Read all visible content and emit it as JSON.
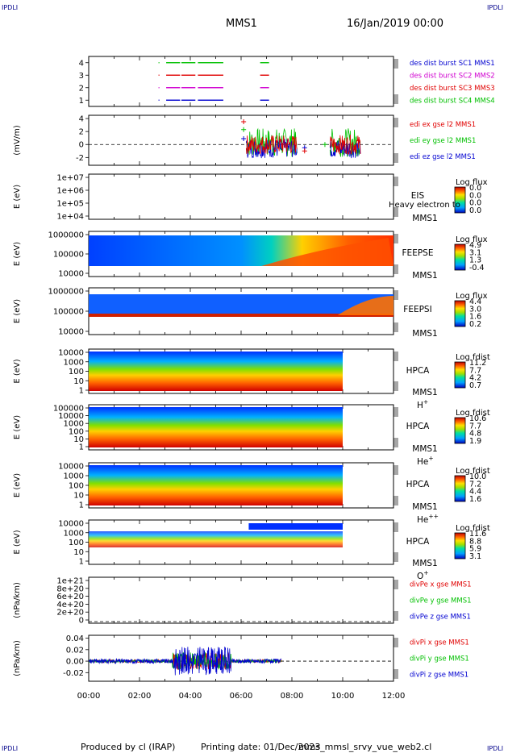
{
  "header": {
    "mission": "MMS1",
    "datetime": "16/Jan/2019 00:00",
    "corner_labels": [
      "IPDLI",
      "IPDLI",
      "IPDLI",
      "IPDLI"
    ]
  },
  "footer": {
    "produced_by": "Produced by cl (IRAP)",
    "printing_date": "Printing date: 01/Dec/2023",
    "filename": "mms_mmsl_srvy_vue_web2.cl"
  },
  "colors": {
    "red": "#e00000",
    "green": "#00c000",
    "blue": "#0000d0",
    "magenta": "#d000d0"
  },
  "chart_data": [
    {
      "id": "burst",
      "type": "scatter",
      "title": "",
      "ylabel": "",
      "yticks": [
        "4",
        "3",
        "2",
        "1"
      ],
      "ylim": [
        0.5,
        4.5
      ],
      "legend": [
        {
          "text": "des dist burst SC1 MMS1",
          "color": "#0000d0"
        },
        {
          "text": "des dist burst SC2 MMS2",
          "color": "#d000d0"
        },
        {
          "text": "des dist burst SC3 MMS3",
          "color": "#e00000"
        },
        {
          "text": "des dist burst SC4 MMS4",
          "color": "#00c000"
        }
      ],
      "series": [
        {
          "name": "des dist burst SC4 MMS4",
          "y": 4,
          "color": "#00c000",
          "intervals": [
            [
              2.75,
              2.76
            ],
            [
              3.05,
              3.6
            ],
            [
              3.65,
              4.2
            ],
            [
              4.3,
              5.3
            ],
            [
              6.75,
              7.1
            ]
          ]
        },
        {
          "name": "des dist burst SC3 MMS3",
          "y": 3,
          "color": "#e00000",
          "intervals": [
            [
              2.75,
              2.76
            ],
            [
              3.05,
              3.6
            ],
            [
              3.65,
              4.2
            ],
            [
              4.3,
              5.3
            ],
            [
              6.75,
              7.1
            ]
          ]
        },
        {
          "name": "des dist burst SC2 MMS2",
          "y": 2,
          "color": "#d000d0",
          "intervals": [
            [
              2.75,
              2.76
            ],
            [
              3.05,
              3.6
            ],
            [
              3.65,
              4.2
            ],
            [
              4.3,
              5.3
            ],
            [
              6.75,
              7.1
            ]
          ]
        },
        {
          "name": "des dist burst SC1 MMS1",
          "y": 1,
          "color": "#0000d0",
          "intervals": [
            [
              2.75,
              2.76
            ],
            [
              3.05,
              3.6
            ],
            [
              3.65,
              4.2
            ],
            [
              4.3,
              5.3
            ],
            [
              6.75,
              7.1
            ]
          ]
        }
      ]
    },
    {
      "id": "edi",
      "type": "line",
      "title": "",
      "ylabel": "(mV/m)",
      "yticks": [
        "4",
        "2",
        "0",
        "-2"
      ],
      "ylim": [
        -3.2,
        4.5
      ],
      "legend": [
        {
          "text": "edi ex gse l2 MMS1",
          "color": "#e00000"
        },
        {
          "text": "edi ey gse l2 MMS1",
          "color": "#00c000"
        },
        {
          "text": "edi ez gse l2 MMS1",
          "color": "#0000d0"
        }
      ],
      "segments": [
        [
          6.2,
          8.2
        ],
        [
          9.5,
          10.7
        ]
      ],
      "markers": [
        {
          "t": 6.1,
          "v": 3.5,
          "color": "#e00000"
        },
        {
          "t": 6.1,
          "v": 2.3,
          "color": "#00c000"
        },
        {
          "t": 6.1,
          "v": 0.9,
          "color": "#0000d0"
        },
        {
          "t": 8.5,
          "v": -0.5,
          "color": "#0000d0"
        },
        {
          "t": 8.5,
          "v": -1.0,
          "color": "#e00000"
        },
        {
          "t": 9.3,
          "v": 0.0,
          "color": "#00c000"
        }
      ]
    },
    {
      "id": "eis",
      "type": "heatmap",
      "title": "",
      "ylabel": "E (eV)",
      "yticks": [
        "1e+07",
        "1e+06",
        "1e+05",
        "1e+04"
      ],
      "labels": [
        "EIS",
        "MMS1"
      ],
      "overflow_label": "Heavy electron to",
      "colorbar": {
        "title": "Log flux",
        "ticks": [
          "0.0",
          "0.0",
          "0.0",
          "0.0"
        ]
      }
    },
    {
      "id": "feepse",
      "type": "heatmap",
      "title": "",
      "ylabel": "E (eV)",
      "yticks": [
        "1000000",
        "100000",
        "10000"
      ],
      "labels": [
        "FEEPSE",
        "MMS1"
      ],
      "colorbar": {
        "title": "Log flux",
        "ticks": [
          "4.9",
          "3.1",
          "1.3",
          "-0.4"
        ]
      }
    },
    {
      "id": "feepsi",
      "type": "heatmap",
      "title": "",
      "ylabel": "E (eV)",
      "yticks": [
        "1000000",
        "100000",
        "10000"
      ],
      "labels": [
        "FEEPSI",
        "MMS1"
      ],
      "colorbar": {
        "title": "Log flux",
        "ticks": [
          "4.4",
          "3.0",
          "1.6",
          "0.2"
        ]
      }
    },
    {
      "id": "hpca_h",
      "type": "heatmap",
      "title": "",
      "ylabel": "E (eV)",
      "yticks": [
        "10000",
        "1000",
        "100",
        "10",
        "1"
      ],
      "labels": [
        "HPCA",
        "MMS1"
      ],
      "species": "H",
      "charge": "+",
      "colorbar": {
        "title": "Log fdist",
        "ticks": [
          "11.2",
          "7.7",
          "4.2",
          "0.7"
        ]
      }
    },
    {
      "id": "hpca_he",
      "type": "heatmap",
      "title": "",
      "ylabel": "E (eV)",
      "yticks": [
        "100000",
        "10000",
        "1000",
        "100",
        "10",
        "1"
      ],
      "labels": [
        "HPCA",
        "MMS1"
      ],
      "species": "He",
      "charge": "+",
      "colorbar": {
        "title": "Log fdist",
        "ticks": [
          "10.6",
          "7.7",
          "4.8",
          "1.9"
        ]
      }
    },
    {
      "id": "hpca_hepp",
      "type": "heatmap",
      "title": "",
      "ylabel": "E (eV)",
      "yticks": [
        "10000",
        "1000",
        "100",
        "10",
        "1"
      ],
      "labels": [
        "HPCA",
        "MMS1"
      ],
      "species": "He",
      "charge": "++",
      "colorbar": {
        "title": "Log fdist",
        "ticks": [
          "10.0",
          "7.2",
          "4.4",
          "1.6"
        ]
      }
    },
    {
      "id": "hpca_o",
      "type": "heatmap",
      "title": "",
      "ylabel": "E (eV)",
      "yticks": [
        "10000",
        "1000",
        "100",
        "10",
        "1"
      ],
      "labels": [
        "HPCA",
        "MMS1"
      ],
      "species": "O",
      "charge": "+",
      "colorbar": {
        "title": "Log fdist",
        "ticks": [
          "11.6",
          "8.8",
          "5.9",
          "3.1"
        ]
      }
    },
    {
      "id": "divpe",
      "type": "line",
      "title": "",
      "ylabel": "(nPa/km)",
      "yticks": [
        "1e+21",
        "8e+20",
        "6e+20",
        "4e+20",
        "2e+20",
        "0"
      ],
      "legend": [
        {
          "text": "divPe x gse MMS1",
          "color": "#e00000"
        },
        {
          "text": "divPe y gse MMS1",
          "color": "#00c000"
        },
        {
          "text": "divPe z gse MMS1",
          "color": "#0000d0"
        }
      ]
    },
    {
      "id": "divpi",
      "type": "line",
      "title": "",
      "ylabel": "(nPa/km)",
      "yticks": [
        "0.04",
        "0.02",
        "0.00",
        "-0.02"
      ],
      "ylim": [
        -0.035,
        0.045
      ],
      "legend": [
        {
          "text": "divPi x gse MMS1",
          "color": "#e00000"
        },
        {
          "text": "divPi y gse MMS1",
          "color": "#00c000"
        },
        {
          "text": "divPi z gse MMS1",
          "color": "#0000d0"
        }
      ]
    }
  ],
  "x_axis": {
    "xlim": [
      0,
      12
    ],
    "ticks": [
      "00:00",
      "02:00",
      "04:00",
      "06:00",
      "08:00",
      "10:00",
      "12:00"
    ]
  }
}
